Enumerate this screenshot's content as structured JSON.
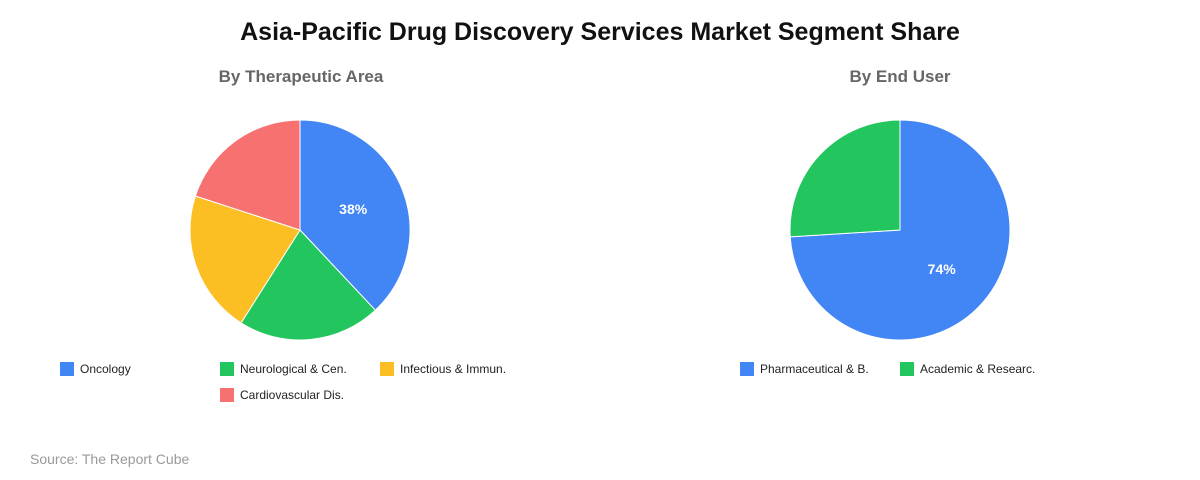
{
  "title": "Asia-Pacific Drug Discovery Services Market Segment Share",
  "source": "Source: The Report Cube",
  "chart_data": [
    {
      "type": "pie",
      "title": "By Therapeutic Area",
      "labels": [
        "Oncology",
        "Neurological & Cen.",
        "Infectious & Immun.",
        "Cardiovascular Dis."
      ],
      "values": [
        38,
        21,
        21,
        20
      ],
      "colors": [
        "#4285f4",
        "#22c55e",
        "#fbbf24",
        "#f87171"
      ],
      "slice_labels": [
        "38%",
        "",
        "",
        ""
      ],
      "legend": "bottom"
    },
    {
      "type": "pie",
      "title": "By End User",
      "labels": [
        "Pharmaceutical & B.",
        "Academic & Researc."
      ],
      "values": [
        74,
        26
      ],
      "colors": [
        "#4285f4",
        "#22c55e"
      ],
      "slice_labels": [
        "74%",
        ""
      ],
      "legend": "bottom"
    }
  ]
}
